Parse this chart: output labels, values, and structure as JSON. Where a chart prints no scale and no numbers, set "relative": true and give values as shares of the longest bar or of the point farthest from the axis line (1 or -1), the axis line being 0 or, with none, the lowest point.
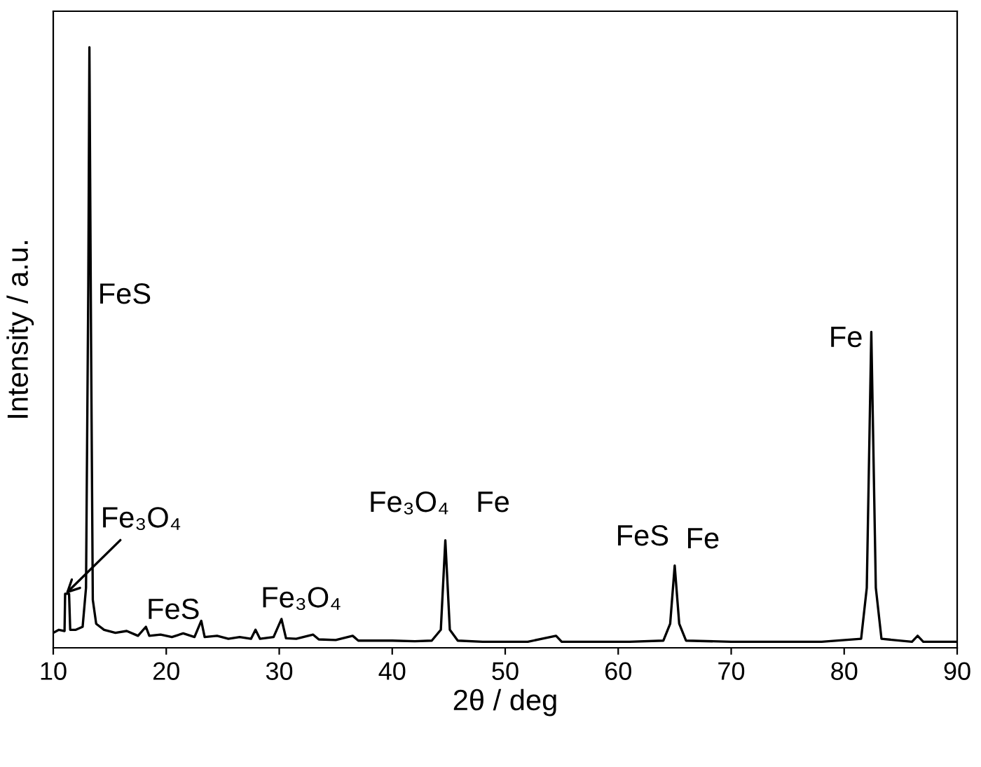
{
  "chart_data": {
    "type": "line",
    "relative": true,
    "xlabel": "2θ / deg",
    "ylabel": "Intensity / a.u.",
    "xlim": [
      10,
      90
    ],
    "xticks": [
      10,
      20,
      30,
      40,
      50,
      60,
      70,
      80,
      90
    ],
    "grid": false,
    "legend": false,
    "marker": "none",
    "line_style": "solid",
    "series": [
      {
        "color": "#000000",
        "x": [
          10,
          10.5,
          11,
          11.05,
          11.4,
          11.5,
          12,
          12.6,
          12.9,
          13.1,
          13.2,
          13.35,
          13.5,
          13.8,
          14.5,
          15.5,
          16.5,
          17.5,
          18.2,
          18.5,
          19.5,
          20.5,
          21.5,
          22.5,
          23.1,
          23.4,
          24.5,
          25.5,
          26.5,
          27.5,
          27.9,
          28.3,
          29.5,
          30.2,
          30.6,
          31.5,
          33,
          33.5,
          35,
          36.5,
          37,
          38.5,
          40,
          42,
          43.5,
          44.3,
          44.7,
          45.1,
          45.8,
          48,
          50,
          52,
          54.5,
          55,
          58,
          61,
          64,
          64.6,
          65.0,
          65.4,
          66,
          70,
          74,
          78,
          81.5,
          82.0,
          82.4,
          82.8,
          83.3,
          86,
          86.5,
          87,
          90
        ],
        "values": [
          0.025,
          0.03,
          0.028,
          0.09,
          0.09,
          0.03,
          0.03,
          0.035,
          0.1,
          0.6,
          1.0,
          0.5,
          0.08,
          0.04,
          0.03,
          0.025,
          0.028,
          0.02,
          0.035,
          0.02,
          0.022,
          0.018,
          0.024,
          0.018,
          0.045,
          0.018,
          0.02,
          0.015,
          0.018,
          0.015,
          0.03,
          0.015,
          0.018,
          0.048,
          0.016,
          0.015,
          0.022,
          0.014,
          0.013,
          0.02,
          0.012,
          0.012,
          0.012,
          0.011,
          0.012,
          0.03,
          0.179,
          0.03,
          0.012,
          0.01,
          0.01,
          0.01,
          0.02,
          0.01,
          0.01,
          0.01,
          0.012,
          0.04,
          0.137,
          0.04,
          0.012,
          0.01,
          0.01,
          0.01,
          0.015,
          0.1,
          0.526,
          0.1,
          0.015,
          0.01,
          0.02,
          0.01,
          0.01
        ]
      }
    ],
    "annotations": [
      {
        "text": "FeS",
        "x": 13.33,
        "y": 0.57
      },
      {
        "text": "Fe₃O₄",
        "x": 11.1,
        "y": 0.09
      },
      {
        "text": "FeS",
        "x": 23.1,
        "y": 0.045
      },
      {
        "text": "Fe₃O₄",
        "x": 30.2,
        "y": 0.048
      },
      {
        "text": "Fe₃O₄",
        "x": 44.7,
        "y": 0.179
      },
      {
        "text": "Fe",
        "x": 44.7,
        "y": 0.179
      },
      {
        "text": "FeS",
        "x": 65.0,
        "y": 0.137
      },
      {
        "text": "Fe",
        "x": 65.0,
        "y": 0.137
      },
      {
        "text": "Fe",
        "x": 82.4,
        "y": 0.526
      }
    ]
  }
}
